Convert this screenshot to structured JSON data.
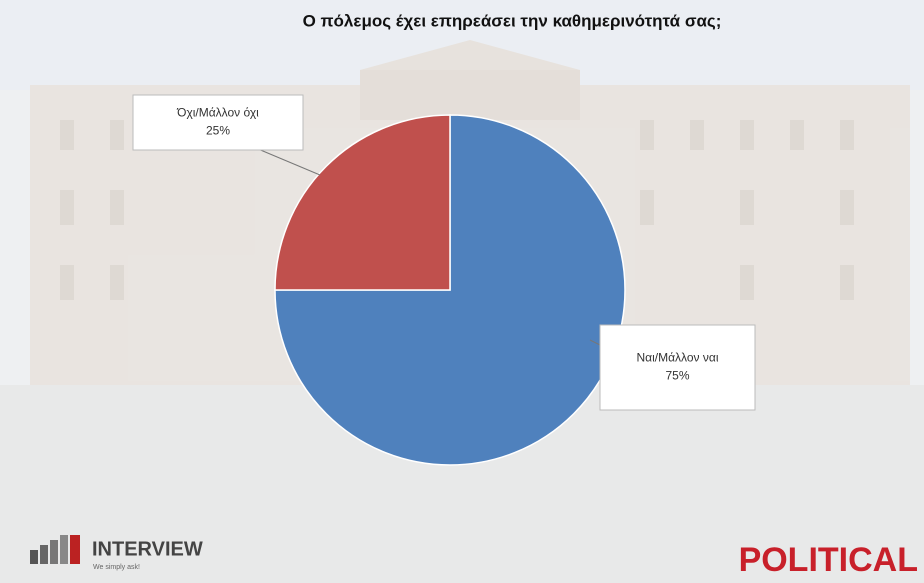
{
  "chart_data": {
    "type": "pie",
    "title": "Ο πόλεμος έχει επηρεάσει την καθημερινότητά σας;",
    "categories": [
      "Ναι/Μάλλον ναι",
      "Όχι/Μάλλον όχι"
    ],
    "values": [
      75,
      25
    ],
    "value_labels": [
      "75%",
      "25%"
    ],
    "colors": [
      "#4f81bd",
      "#c0504d"
    ]
  },
  "logos": {
    "interview": "INTERVIEW",
    "interview_tagline": "We simply ask!",
    "political": "POLITICAL"
  }
}
